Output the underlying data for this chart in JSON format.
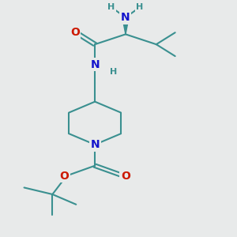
{
  "background_color": "#e8eaea",
  "bond_color": "#3a9090",
  "bond_width": 1.5,
  "N_color": "#1414cc",
  "O_color": "#cc1800",
  "H_color": "#3a9090",
  "font_size_N": 10,
  "font_size_O": 10,
  "font_size_H": 8,
  "figsize": [
    3.0,
    3.0
  ],
  "dpi": 100,
  "xlim": [
    0,
    10
  ],
  "ylim": [
    0,
    14
  ]
}
